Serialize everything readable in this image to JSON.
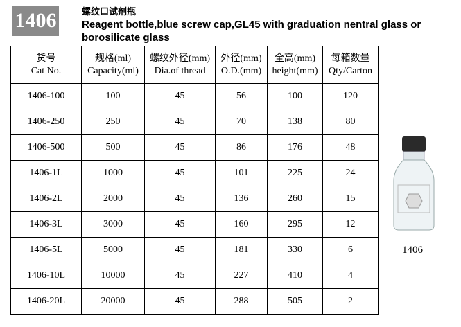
{
  "header": {
    "code": "1406",
    "title_cn": "螺纹口试剂瓶",
    "title_en": [
      "Reagent bottle,blue screw cap,GL45 with graduation nentral glass or",
      "borosilicate glass"
    ]
  },
  "table": {
    "columns": [
      [
        "货号",
        "Cat No."
      ],
      [
        "规格(ml)",
        "Capacity(ml)"
      ],
      [
        "螺纹外径(mm)",
        "Dia.of thread"
      ],
      [
        "外径(mm)",
        "O.D.(mm)"
      ],
      [
        "全高(mm)",
        "height(mm)"
      ],
      [
        "每箱数量",
        "Qty/Carton"
      ]
    ],
    "rows": [
      [
        "1406-100",
        100,
        45,
        56,
        100,
        120
      ],
      [
        "1406-250",
        250,
        45,
        70,
        138,
        80
      ],
      [
        "1406-500",
        500,
        45,
        86,
        176,
        48
      ],
      [
        "1406-1L",
        1000,
        45,
        101,
        225,
        24
      ],
      [
        "1406-2L",
        2000,
        45,
        136,
        260,
        15
      ],
      [
        "1406-3L",
        3000,
        45,
        160,
        295,
        12
      ],
      [
        "1406-5L",
        5000,
        45,
        181,
        330,
        6
      ],
      [
        "1406-10L",
        10000,
        45,
        227,
        410,
        4
      ],
      [
        "1406-20L",
        20000,
        45,
        288,
        505,
        2
      ]
    ]
  },
  "image": {
    "caption": "1406"
  }
}
